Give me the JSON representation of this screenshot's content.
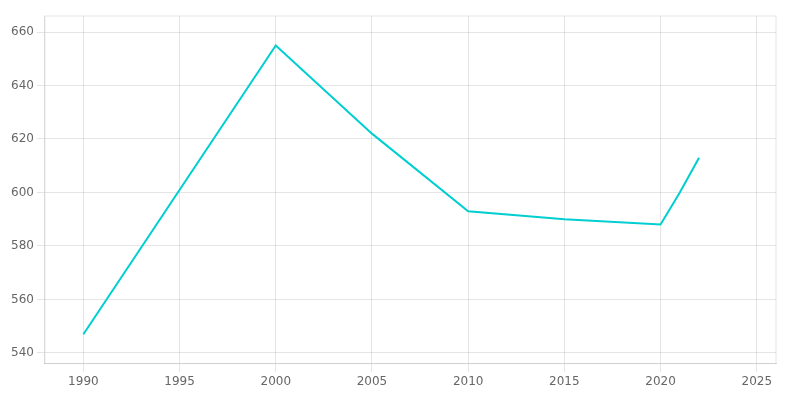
{
  "chart_data": {
    "type": "line",
    "x": [
      1990,
      2000,
      2005,
      2010,
      2015,
      2020,
      2021,
      2022
    ],
    "values": [
      547,
      655,
      622,
      593,
      590,
      588,
      600,
      613
    ],
    "color": "#00CED1",
    "xlim": [
      1988,
      2026
    ],
    "ylim": [
      536,
      666
    ],
    "xticks": [
      1990,
      1995,
      2000,
      2005,
      2010,
      2015,
      2020,
      2025
    ],
    "yticks": [
      540,
      560,
      580,
      600,
      620,
      640,
      660
    ],
    "grid": true
  }
}
